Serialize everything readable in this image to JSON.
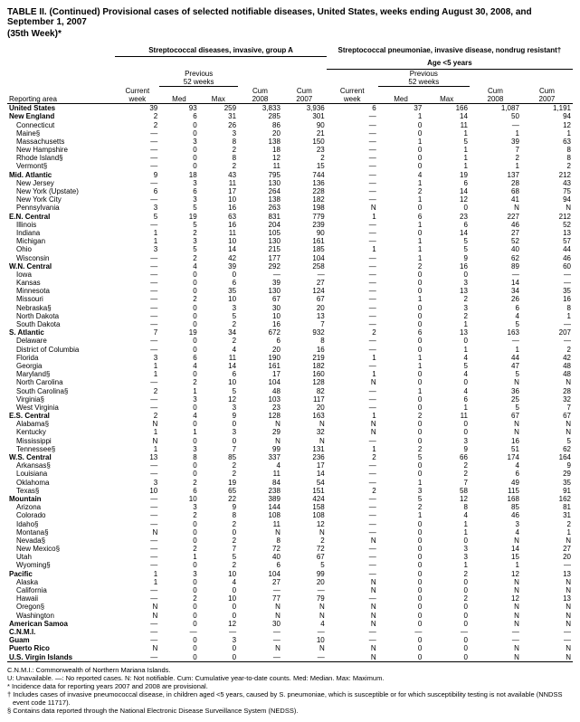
{
  "title": "TABLE II. (Continued) Provisional cases of selected notifiable diseases, United States, weeks ending August 30, 2008, and September 1, 2007",
  "subtitle": "(35th Week)*",
  "disease1": "Streptococcal diseases, invasive, group A",
  "disease2_line1": "Streptococcal pneumoniae, invasive disease, nondrug resistant†",
  "disease2_line2": "Age <5 years",
  "col_area": "Reporting area",
  "col_cur": "Current\nweek",
  "col_prev": "Previous\n52 weeks",
  "col_med": "Med",
  "col_max": "Max",
  "col_cum1": "Cum\n2008",
  "col_cum2": "Cum\n2007",
  "regions": [
    {
      "name": "United States",
      "bold": true,
      "a": [
        "39",
        "93",
        "259",
        "3,833",
        "3,936",
        "6",
        "37",
        "166",
        "1,087",
        "1,191"
      ]
    },
    {
      "name": "New England",
      "bold": true,
      "a": [
        "2",
        "6",
        "31",
        "285",
        "301",
        "—",
        "1",
        "14",
        "50",
        "94"
      ]
    },
    {
      "name": "Connecticut",
      "indent": true,
      "a": [
        "2",
        "0",
        "26",
        "86",
        "90",
        "—",
        "0",
        "11",
        "—",
        "12"
      ]
    },
    {
      "name": "Maine§",
      "indent": true,
      "a": [
        "—",
        "0",
        "3",
        "20",
        "21",
        "—",
        "0",
        "1",
        "1",
        "1"
      ]
    },
    {
      "name": "Massachusetts",
      "indent": true,
      "a": [
        "—",
        "3",
        "8",
        "138",
        "150",
        "—",
        "1",
        "5",
        "39",
        "63"
      ]
    },
    {
      "name": "New Hampshire",
      "indent": true,
      "a": [
        "—",
        "0",
        "2",
        "18",
        "23",
        "—",
        "0",
        "1",
        "7",
        "8"
      ]
    },
    {
      "name": "Rhode Island§",
      "indent": true,
      "a": [
        "—",
        "0",
        "8",
        "12",
        "2",
        "—",
        "0",
        "1",
        "2",
        "8"
      ]
    },
    {
      "name": "Vermont§",
      "indent": true,
      "a": [
        "—",
        "0",
        "2",
        "11",
        "15",
        "—",
        "0",
        "1",
        "1",
        "2"
      ]
    },
    {
      "name": "Mid. Atlantic",
      "bold": true,
      "a": [
        "9",
        "18",
        "43",
        "795",
        "744",
        "—",
        "4",
        "19",
        "137",
        "212"
      ]
    },
    {
      "name": "New Jersey",
      "indent": true,
      "a": [
        "—",
        "3",
        "11",
        "130",
        "136",
        "—",
        "1",
        "6",
        "28",
        "43"
      ]
    },
    {
      "name": "New York (Upstate)",
      "indent": true,
      "a": [
        "6",
        "6",
        "17",
        "264",
        "228",
        "—",
        "2",
        "14",
        "68",
        "75"
      ]
    },
    {
      "name": "New York City",
      "indent": true,
      "a": [
        "—",
        "3",
        "10",
        "138",
        "182",
        "—",
        "1",
        "12",
        "41",
        "94"
      ]
    },
    {
      "name": "Pennsylvania",
      "indent": true,
      "a": [
        "3",
        "5",
        "16",
        "263",
        "198",
        "N",
        "0",
        "0",
        "N",
        "N"
      ]
    },
    {
      "name": "E.N. Central",
      "bold": true,
      "a": [
        "5",
        "19",
        "63",
        "831",
        "779",
        "1",
        "6",
        "23",
        "227",
        "212"
      ]
    },
    {
      "name": "Illinois",
      "indent": true,
      "a": [
        "—",
        "5",
        "16",
        "204",
        "239",
        "—",
        "1",
        "6",
        "46",
        "52"
      ]
    },
    {
      "name": "Indiana",
      "indent": true,
      "a": [
        "1",
        "2",
        "11",
        "105",
        "90",
        "—",
        "0",
        "14",
        "27",
        "13"
      ]
    },
    {
      "name": "Michigan",
      "indent": true,
      "a": [
        "1",
        "3",
        "10",
        "130",
        "161",
        "—",
        "1",
        "5",
        "52",
        "57"
      ]
    },
    {
      "name": "Ohio",
      "indent": true,
      "a": [
        "3",
        "5",
        "14",
        "215",
        "185",
        "1",
        "1",
        "5",
        "40",
        "44"
      ]
    },
    {
      "name": "Wisconsin",
      "indent": true,
      "a": [
        "—",
        "2",
        "42",
        "177",
        "104",
        "—",
        "1",
        "9",
        "62",
        "46"
      ]
    },
    {
      "name": "W.N. Central",
      "bold": true,
      "a": [
        "—",
        "4",
        "39",
        "292",
        "258",
        "—",
        "2",
        "16",
        "89",
        "60"
      ]
    },
    {
      "name": "Iowa",
      "indent": true,
      "a": [
        "—",
        "0",
        "0",
        "—",
        "—",
        "—",
        "0",
        "0",
        "—",
        "—"
      ]
    },
    {
      "name": "Kansas",
      "indent": true,
      "a": [
        "—",
        "0",
        "6",
        "39",
        "27",
        "—",
        "0",
        "3",
        "14",
        "—"
      ]
    },
    {
      "name": "Minnesota",
      "indent": true,
      "a": [
        "—",
        "0",
        "35",
        "130",
        "124",
        "—",
        "0",
        "13",
        "34",
        "35"
      ]
    },
    {
      "name": "Missouri",
      "indent": true,
      "a": [
        "—",
        "2",
        "10",
        "67",
        "67",
        "—",
        "1",
        "2",
        "26",
        "16"
      ]
    },
    {
      "name": "Nebraska§",
      "indent": true,
      "a": [
        "—",
        "0",
        "3",
        "30",
        "20",
        "—",
        "0",
        "3",
        "6",
        "8"
      ]
    },
    {
      "name": "North Dakota",
      "indent": true,
      "a": [
        "—",
        "0",
        "5",
        "10",
        "13",
        "—",
        "0",
        "2",
        "4",
        "1"
      ]
    },
    {
      "name": "South Dakota",
      "indent": true,
      "a": [
        "—",
        "0",
        "2",
        "16",
        "7",
        "—",
        "0",
        "1",
        "5",
        "—"
      ]
    },
    {
      "name": "S. Atlantic",
      "bold": true,
      "a": [
        "7",
        "19",
        "34",
        "672",
        "932",
        "2",
        "6",
        "13",
        "163",
        "207"
      ]
    },
    {
      "name": "Delaware",
      "indent": true,
      "a": [
        "—",
        "0",
        "2",
        "6",
        "8",
        "—",
        "0",
        "0",
        "—",
        "—"
      ]
    },
    {
      "name": "District of Columbia",
      "indent": true,
      "a": [
        "—",
        "0",
        "4",
        "20",
        "16",
        "—",
        "0",
        "1",
        "1",
        "2"
      ]
    },
    {
      "name": "Florida",
      "indent": true,
      "a": [
        "3",
        "6",
        "11",
        "190",
        "219",
        "1",
        "1",
        "4",
        "44",
        "42"
      ]
    },
    {
      "name": "Georgia",
      "indent": true,
      "a": [
        "1",
        "4",
        "14",
        "161",
        "182",
        "—",
        "1",
        "5",
        "47",
        "48"
      ]
    },
    {
      "name": "Maryland§",
      "indent": true,
      "a": [
        "1",
        "0",
        "6",
        "17",
        "160",
        "1",
        "0",
        "4",
        "5",
        "48"
      ]
    },
    {
      "name": "North Carolina",
      "indent": true,
      "a": [
        "—",
        "2",
        "10",
        "104",
        "128",
        "N",
        "0",
        "0",
        "N",
        "N"
      ]
    },
    {
      "name": "South Carolina§",
      "indent": true,
      "a": [
        "2",
        "1",
        "5",
        "48",
        "82",
        "—",
        "1",
        "4",
        "36",
        "28"
      ]
    },
    {
      "name": "Virginia§",
      "indent": true,
      "a": [
        "—",
        "3",
        "12",
        "103",
        "117",
        "—",
        "0",
        "6",
        "25",
        "32"
      ]
    },
    {
      "name": "West Virginia",
      "indent": true,
      "a": [
        "—",
        "0",
        "3",
        "23",
        "20",
        "—",
        "0",
        "1",
        "5",
        "7"
      ]
    },
    {
      "name": "E.S. Central",
      "bold": true,
      "a": [
        "2",
        "4",
        "9",
        "128",
        "163",
        "1",
        "2",
        "11",
        "67",
        "67"
      ]
    },
    {
      "name": "Alabama§",
      "indent": true,
      "a": [
        "N",
        "0",
        "0",
        "N",
        "N",
        "N",
        "0",
        "0",
        "N",
        "N"
      ]
    },
    {
      "name": "Kentucky",
      "indent": true,
      "a": [
        "1",
        "1",
        "3",
        "29",
        "32",
        "N",
        "0",
        "0",
        "N",
        "N"
      ]
    },
    {
      "name": "Mississippi",
      "indent": true,
      "a": [
        "N",
        "0",
        "0",
        "N",
        "N",
        "—",
        "0",
        "3",
        "16",
        "5"
      ]
    },
    {
      "name": "Tennessee§",
      "indent": true,
      "a": [
        "1",
        "3",
        "7",
        "99",
        "131",
        "1",
        "2",
        "9",
        "51",
        "62"
      ]
    },
    {
      "name": "W.S. Central",
      "bold": true,
      "a": [
        "13",
        "8",
        "85",
        "337",
        "236",
        "2",
        "5",
        "66",
        "174",
        "164"
      ]
    },
    {
      "name": "Arkansas§",
      "indent": true,
      "a": [
        "—",
        "0",
        "2",
        "4",
        "17",
        "—",
        "0",
        "2",
        "4",
        "9"
      ]
    },
    {
      "name": "Louisiana",
      "indent": true,
      "a": [
        "—",
        "0",
        "2",
        "11",
        "14",
        "—",
        "0",
        "2",
        "6",
        "29"
      ]
    },
    {
      "name": "Oklahoma",
      "indent": true,
      "a": [
        "3",
        "2",
        "19",
        "84",
        "54",
        "—",
        "1",
        "7",
        "49",
        "35"
      ]
    },
    {
      "name": "Texas§",
      "indent": true,
      "a": [
        "10",
        "6",
        "65",
        "238",
        "151",
        "2",
        "3",
        "58",
        "115",
        "91"
      ]
    },
    {
      "name": "Mountain",
      "bold": true,
      "a": [
        "—",
        "10",
        "22",
        "389",
        "424",
        "—",
        "5",
        "12",
        "168",
        "162"
      ]
    },
    {
      "name": "Arizona",
      "indent": true,
      "a": [
        "—",
        "3",
        "9",
        "144",
        "158",
        "—",
        "2",
        "8",
        "85",
        "81"
      ]
    },
    {
      "name": "Colorado",
      "indent": true,
      "a": [
        "—",
        "2",
        "8",
        "108",
        "108",
        "—",
        "1",
        "4",
        "46",
        "31"
      ]
    },
    {
      "name": "Idaho§",
      "indent": true,
      "a": [
        "—",
        "0",
        "2",
        "11",
        "12",
        "—",
        "0",
        "1",
        "3",
        "2"
      ]
    },
    {
      "name": "Montana§",
      "indent": true,
      "a": [
        "N",
        "0",
        "0",
        "N",
        "N",
        "—",
        "0",
        "1",
        "4",
        "1"
      ]
    },
    {
      "name": "Nevada§",
      "indent": true,
      "a": [
        "—",
        "0",
        "2",
        "8",
        "2",
        "N",
        "0",
        "0",
        "N",
        "N"
      ]
    },
    {
      "name": "New Mexico§",
      "indent": true,
      "a": [
        "—",
        "2",
        "7",
        "72",
        "72",
        "—",
        "0",
        "3",
        "14",
        "27"
      ]
    },
    {
      "name": "Utah",
      "indent": true,
      "a": [
        "—",
        "1",
        "5",
        "40",
        "67",
        "—",
        "0",
        "3",
        "15",
        "20"
      ]
    },
    {
      "name": "Wyoming§",
      "indent": true,
      "a": [
        "—",
        "0",
        "2",
        "6",
        "5",
        "—",
        "0",
        "1",
        "1",
        "—"
      ]
    },
    {
      "name": "Pacific",
      "bold": true,
      "a": [
        "1",
        "3",
        "10",
        "104",
        "99",
        "—",
        "0",
        "2",
        "12",
        "13"
      ]
    },
    {
      "name": "Alaska",
      "indent": true,
      "a": [
        "1",
        "0",
        "4",
        "27",
        "20",
        "N",
        "0",
        "0",
        "N",
        "N"
      ]
    },
    {
      "name": "California",
      "indent": true,
      "a": [
        "—",
        "0",
        "0",
        "—",
        "—",
        "N",
        "0",
        "0",
        "N",
        "N"
      ]
    },
    {
      "name": "Hawaii",
      "indent": true,
      "a": [
        "—",
        "2",
        "10",
        "77",
        "79",
        "—",
        "0",
        "2",
        "12",
        "13"
      ]
    },
    {
      "name": "Oregon§",
      "indent": true,
      "a": [
        "N",
        "0",
        "0",
        "N",
        "N",
        "N",
        "0",
        "0",
        "N",
        "N"
      ]
    },
    {
      "name": "Washington",
      "indent": true,
      "a": [
        "N",
        "0",
        "0",
        "N",
        "N",
        "N",
        "0",
        "0",
        "N",
        "N"
      ]
    },
    {
      "name": "American Samoa",
      "bold": true,
      "a": [
        "—",
        "0",
        "12",
        "30",
        "4",
        "N",
        "0",
        "0",
        "N",
        "N"
      ]
    },
    {
      "name": "C.N.M.I.",
      "bold": true,
      "a": [
        "—",
        "—",
        "—",
        "—",
        "—",
        "—",
        "—",
        "—",
        "—",
        "—"
      ]
    },
    {
      "name": "Guam",
      "bold": true,
      "a": [
        "—",
        "0",
        "3",
        "—",
        "10",
        "—",
        "0",
        "0",
        "—",
        "—"
      ]
    },
    {
      "name": "Puerto Rico",
      "bold": true,
      "a": [
        "N",
        "0",
        "0",
        "N",
        "N",
        "N",
        "0",
        "0",
        "N",
        "N"
      ]
    },
    {
      "name": "U.S. Virgin Islands",
      "bold": true,
      "a": [
        "—",
        "0",
        "0",
        "—",
        "—",
        "N",
        "0",
        "0",
        "N",
        "N"
      ]
    }
  ],
  "foot1": "C.N.M.I.: Commonwealth of Northern Mariana Islands.",
  "foot2": "U: Unavailable.    —: No reported cases.    N: Not notifiable.    Cum: Cumulative year-to-date counts.    Med: Median.    Max: Maximum.",
  "foot3": "* Incidence data for reporting years 2007 and 2008 are provisional.",
  "foot4": "† Includes cases of invasive pneumococcal disease, in children aged <5 years, caused by S. pneumoniae, which is susceptible or for which susceptibility testing is not available (NNDSS event code 11717).",
  "foot5": "§ Contains data reported through the National Electronic Disease Surveillance System (NEDSS)."
}
